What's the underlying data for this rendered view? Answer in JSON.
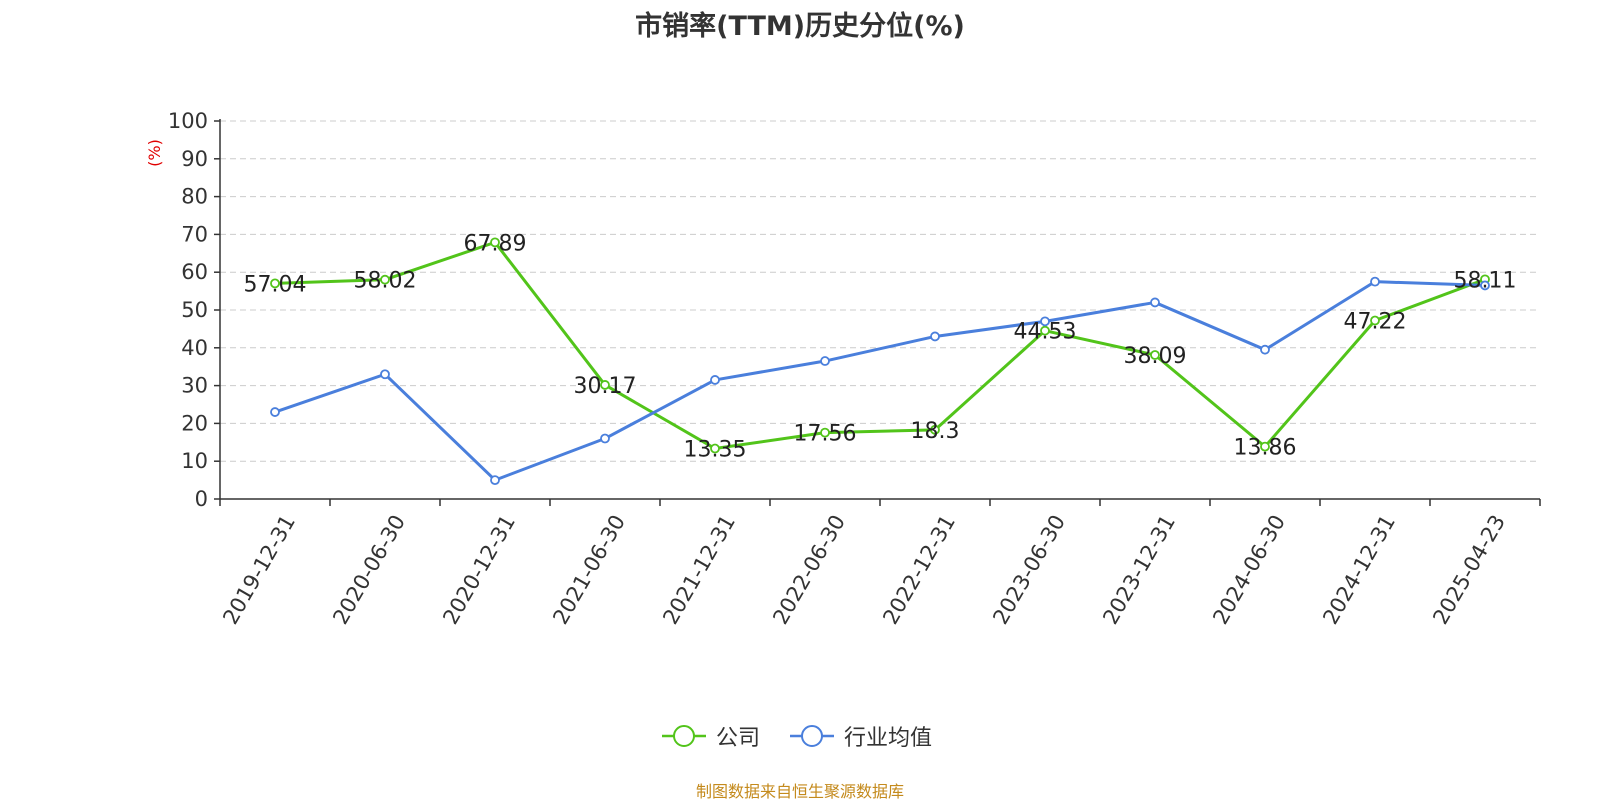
{
  "chart_data": {
    "type": "line",
    "title": "市销率(TTM)历史分位(%)",
    "ylabel": "(%)",
    "ylim": [
      0,
      100
    ],
    "yticks": [
      "0",
      "10",
      "20",
      "30",
      "40",
      "50",
      "60",
      "70",
      "80",
      "90",
      "100"
    ],
    "grid": true,
    "categories": [
      "2019-12-31",
      "2020-06-30",
      "2020-12-31",
      "2021-06-30",
      "2021-12-31",
      "2022-06-30",
      "2022-12-31",
      "2023-06-30",
      "2023-12-31",
      "2024-06-30",
      "2024-12-31",
      "2025-04-23"
    ],
    "series": [
      {
        "name": "公司",
        "color": "#52c41a",
        "values": [
          57.04,
          58.02,
          67.89,
          30.17,
          13.35,
          17.56,
          18.3,
          44.53,
          38.09,
          13.86,
          47.22,
          58.11
        ],
        "labels": [
          "57.04",
          "58.02",
          "67.89",
          "30.17",
          "13.35",
          "17.56",
          "18.3",
          "44.53",
          "38.09",
          "13.86",
          "47.22",
          "58.11"
        ]
      },
      {
        "name": "行业均值",
        "color": "#4a7fdc",
        "values": [
          23,
          33,
          5,
          16,
          31.5,
          36.5,
          43,
          47,
          52,
          39.5,
          57.5,
          56.5
        ]
      }
    ],
    "legend_position": "bottom",
    "source": "制图数据来自恒生聚源数据库"
  }
}
